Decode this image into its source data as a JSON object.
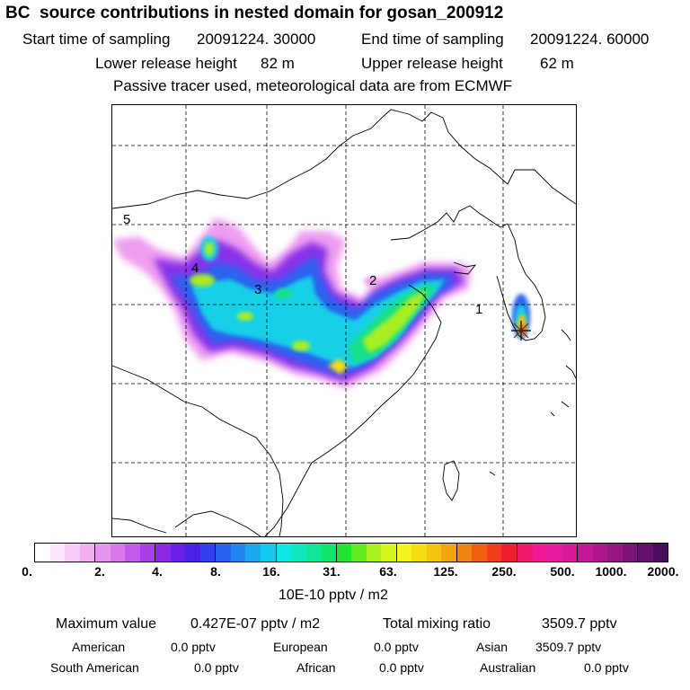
{
  "header": {
    "title": "BC  source contributions in nested domain for gosan_200912",
    "start_label": "Start time of sampling",
    "start_value": "20091224. 30000",
    "end_label": "End time of sampling",
    "end_value": "20091224. 60000",
    "lower_label": "Lower release height",
    "lower_value": "82 m",
    "upper_label": "Upper release height",
    "upper_value": "62 m",
    "tracer_note": "Passive tracer used, meteorological data are from ECMWF"
  },
  "map": {
    "markers": [
      "1",
      "2",
      "3",
      "4",
      "5"
    ],
    "receptor": "gosan-receptor"
  },
  "colorbar": {
    "colors": [
      "#ffffff",
      "#fbe6fb",
      "#f6ccf6",
      "#f0b0f0",
      "#e696ec",
      "#d878ec",
      "#c45aec",
      "#a83ee6",
      "#8a28e6",
      "#6c1ee6",
      "#4a22e6",
      "#3440f0",
      "#2a62f0",
      "#2286f0",
      "#1aa8f0",
      "#14c8f0",
      "#10e6e6",
      "#10e6c0",
      "#10e699",
      "#10e66c",
      "#20e630",
      "#60ec20",
      "#a8f020",
      "#d6f420",
      "#f4f420",
      "#f4dc10",
      "#f4c410",
      "#f4a410",
      "#f08410",
      "#f06010",
      "#f03c18",
      "#f01c30",
      "#f0186a",
      "#f01896",
      "#e81aa0",
      "#d81a9a",
      "#c41896",
      "#b0168c",
      "#961682",
      "#7c1478",
      "#62126c",
      "#480e5c"
    ],
    "ticks": [
      "0.",
      "2.",
      "4.",
      "8.",
      "16.",
      "31.",
      "63.",
      "125.",
      "250.",
      "500.",
      "1000.",
      "2000."
    ],
    "units": "10E-10 pptv / m2"
  },
  "stats": {
    "max_label": "Maximum value",
    "max_value": "0.427E-07 pptv / m2",
    "total_label": "Total mixing ratio",
    "total_value": "3509.7 pptv",
    "american_label": "American",
    "american_value": "0.0 pptv",
    "european_label": "European",
    "european_value": "0.0 pptv",
    "asian_label": "Asian",
    "asian_value": "3509.7 pptv",
    "south_american_label": "South American",
    "south_american_value": "0.0 pptv",
    "african_label": "African",
    "african_value": "0.0 pptv",
    "australian_label": "Australian",
    "australian_value": "0.0 pptv"
  }
}
